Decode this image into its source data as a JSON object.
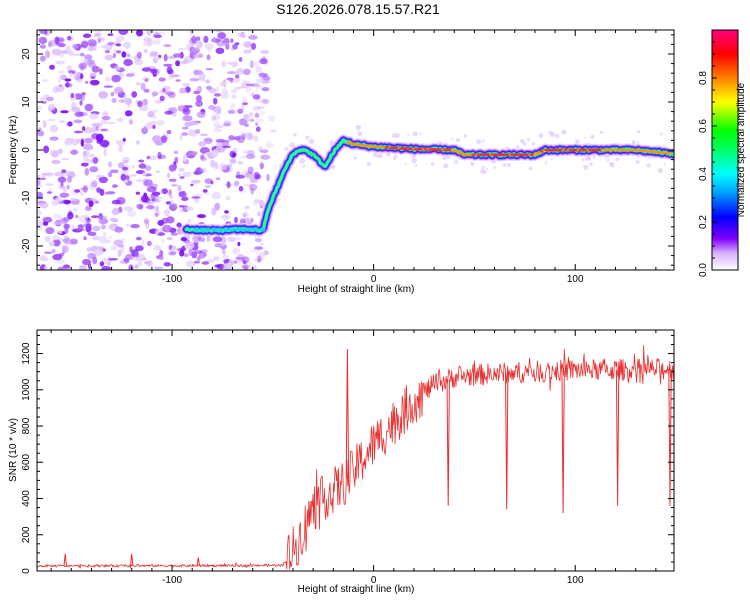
{
  "figure": {
    "title": "S126.2026.078.15.57.R21"
  },
  "chart_data": [
    {
      "type": "heatmap",
      "xlabel": "Height of straight line (km)",
      "ylabel": "Frequency (Hz)",
      "xlim": [
        -167,
        149
      ],
      "ylim": [
        -25,
        25
      ],
      "xticks": [
        -100,
        0,
        100
      ],
      "yticks": [
        -20,
        -10,
        0,
        10,
        20
      ],
      "colorbar": {
        "label": "Normalized spectral amplitude",
        "range": [
          0,
          1
        ],
        "ticks": [
          0.0,
          0.2,
          0.4,
          0.6,
          0.8
        ],
        "colormap": [
          "#ffffff",
          "#8000ff",
          "#0000ff",
          "#00ffff",
          "#00ff00",
          "#ffff00",
          "#ff8000",
          "#ff0000",
          "#ff0080"
        ]
      },
      "noise_region_x": [
        -167,
        -53
      ],
      "ridge": [
        {
          "x": -93,
          "y": -16.5
        },
        {
          "x": -80,
          "y": -16.8
        },
        {
          "x": -70,
          "y": -16.6
        },
        {
          "x": -62,
          "y": -16.5
        },
        {
          "x": -55,
          "y": -16.8
        },
        {
          "x": -52,
          "y": -12
        },
        {
          "x": -48,
          "y": -8
        },
        {
          "x": -44,
          "y": -4
        },
        {
          "x": -40,
          "y": -0.8
        },
        {
          "x": -35,
          "y": 0.2
        },
        {
          "x": -30,
          "y": -1
        },
        {
          "x": -24,
          "y": -3.5
        },
        {
          "x": -20,
          "y": -0.5
        },
        {
          "x": -15,
          "y": 2
        },
        {
          "x": -10,
          "y": 1.2
        },
        {
          "x": 0,
          "y": 0.7
        },
        {
          "x": 20,
          "y": 0.2
        },
        {
          "x": 40,
          "y": 0
        },
        {
          "x": 45,
          "y": -1
        },
        {
          "x": 80,
          "y": -1
        },
        {
          "x": 85,
          "y": 0
        },
        {
          "x": 110,
          "y": 0
        },
        {
          "x": 130,
          "y": 0
        },
        {
          "x": 149,
          "y": -0.8
        }
      ]
    },
    {
      "type": "line",
      "xlabel": "Height of straight line (km)",
      "ylabel": "SNR (10 * v/v)",
      "xlim": [
        -167,
        149
      ],
      "ylim": [
        0,
        1330
      ],
      "xticks": [
        -100,
        0,
        100
      ],
      "yticks": [
        0,
        200,
        400,
        600,
        800,
        1000,
        1200
      ],
      "series": [
        {
          "name": "SNR",
          "color": "#e83030",
          "trend": [
            {
              "x": -167,
              "y": 28
            },
            {
              "x": -60,
              "y": 30
            },
            {
              "x": -45,
              "y": 32
            },
            {
              "x": -38,
              "y": 150
            },
            {
              "x": -33,
              "y": 280
            },
            {
              "x": -28,
              "y": 370
            },
            {
              "x": -22,
              "y": 430
            },
            {
              "x": -15,
              "y": 480
            },
            {
              "x": -8,
              "y": 580
            },
            {
              "x": 0,
              "y": 700
            },
            {
              "x": 10,
              "y": 820
            },
            {
              "x": 20,
              "y": 940
            },
            {
              "x": 30,
              "y": 1030
            },
            {
              "x": 40,
              "y": 1070
            },
            {
              "x": 60,
              "y": 1090
            },
            {
              "x": 80,
              "y": 1100
            },
            {
              "x": 100,
              "y": 1110
            },
            {
              "x": 120,
              "y": 1110
            },
            {
              "x": 149,
              "y": 1115
            }
          ],
          "spikes": [
            {
              "x": -153,
              "y": 95
            },
            {
              "x": -120,
              "y": 95
            },
            {
              "x": -87,
              "y": 75
            },
            {
              "x": -13,
              "y": 1225
            },
            {
              "x": 37,
              "y": 360
            },
            {
              "x": 66,
              "y": 340
            },
            {
              "x": 94,
              "y": 320
            },
            {
              "x": 121,
              "y": 360
            },
            {
              "x": 147,
              "y": 360
            }
          ]
        }
      ]
    }
  ]
}
